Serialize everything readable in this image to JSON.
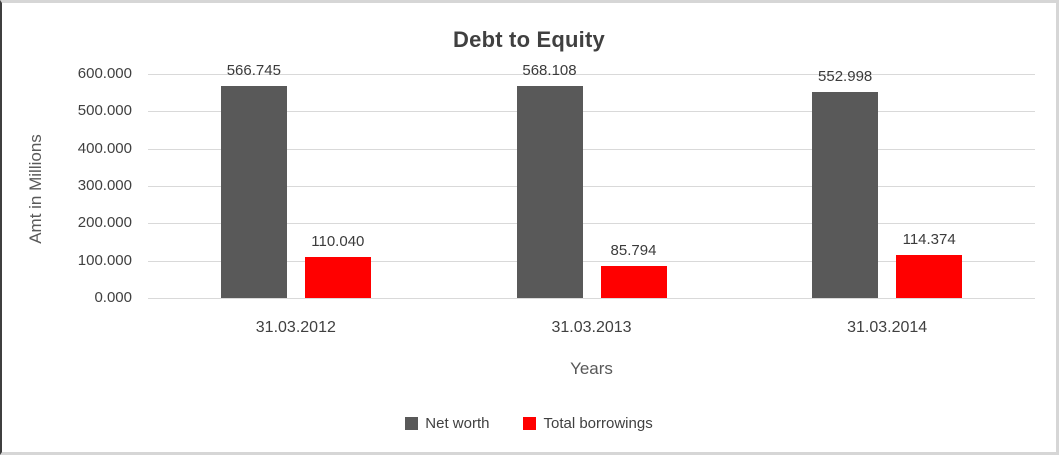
{
  "chart_data": {
    "type": "bar",
    "title": "Debt to Equity",
    "xlabel": "Years",
    "ylabel": "Amt in Millions",
    "categories": [
      "31.03.2012",
      "31.03.2013",
      "31.03.2014"
    ],
    "series": [
      {
        "name": "Net worth",
        "color": "#595959",
        "values": [
          566.745,
          568.108,
          552.998
        ],
        "labels": [
          "566.745",
          "568.108",
          "552.998"
        ]
      },
      {
        "name": "Total borrowings",
        "color": "#ff0000",
        "values": [
          110.04,
          85.794,
          114.374
        ],
        "labels": [
          "110.040",
          "85.794",
          "114.374"
        ]
      }
    ],
    "ylim": [
      0,
      600
    ],
    "ytick_step": 100,
    "ytick_labels": [
      "0.000",
      "100.000",
      "200.000",
      "300.000",
      "400.000",
      "500.000",
      "600.000"
    ],
    "grid": true,
    "legend_position": "bottom"
  },
  "colors": {
    "grid": "#d9d9d9",
    "title_text": "#404040",
    "axis_text": "#595959",
    "tick_text": "#404040",
    "frame_border_left": "#3f3f3f",
    "frame_border_light": "#d6d6d6",
    "background": "#ffffff"
  }
}
